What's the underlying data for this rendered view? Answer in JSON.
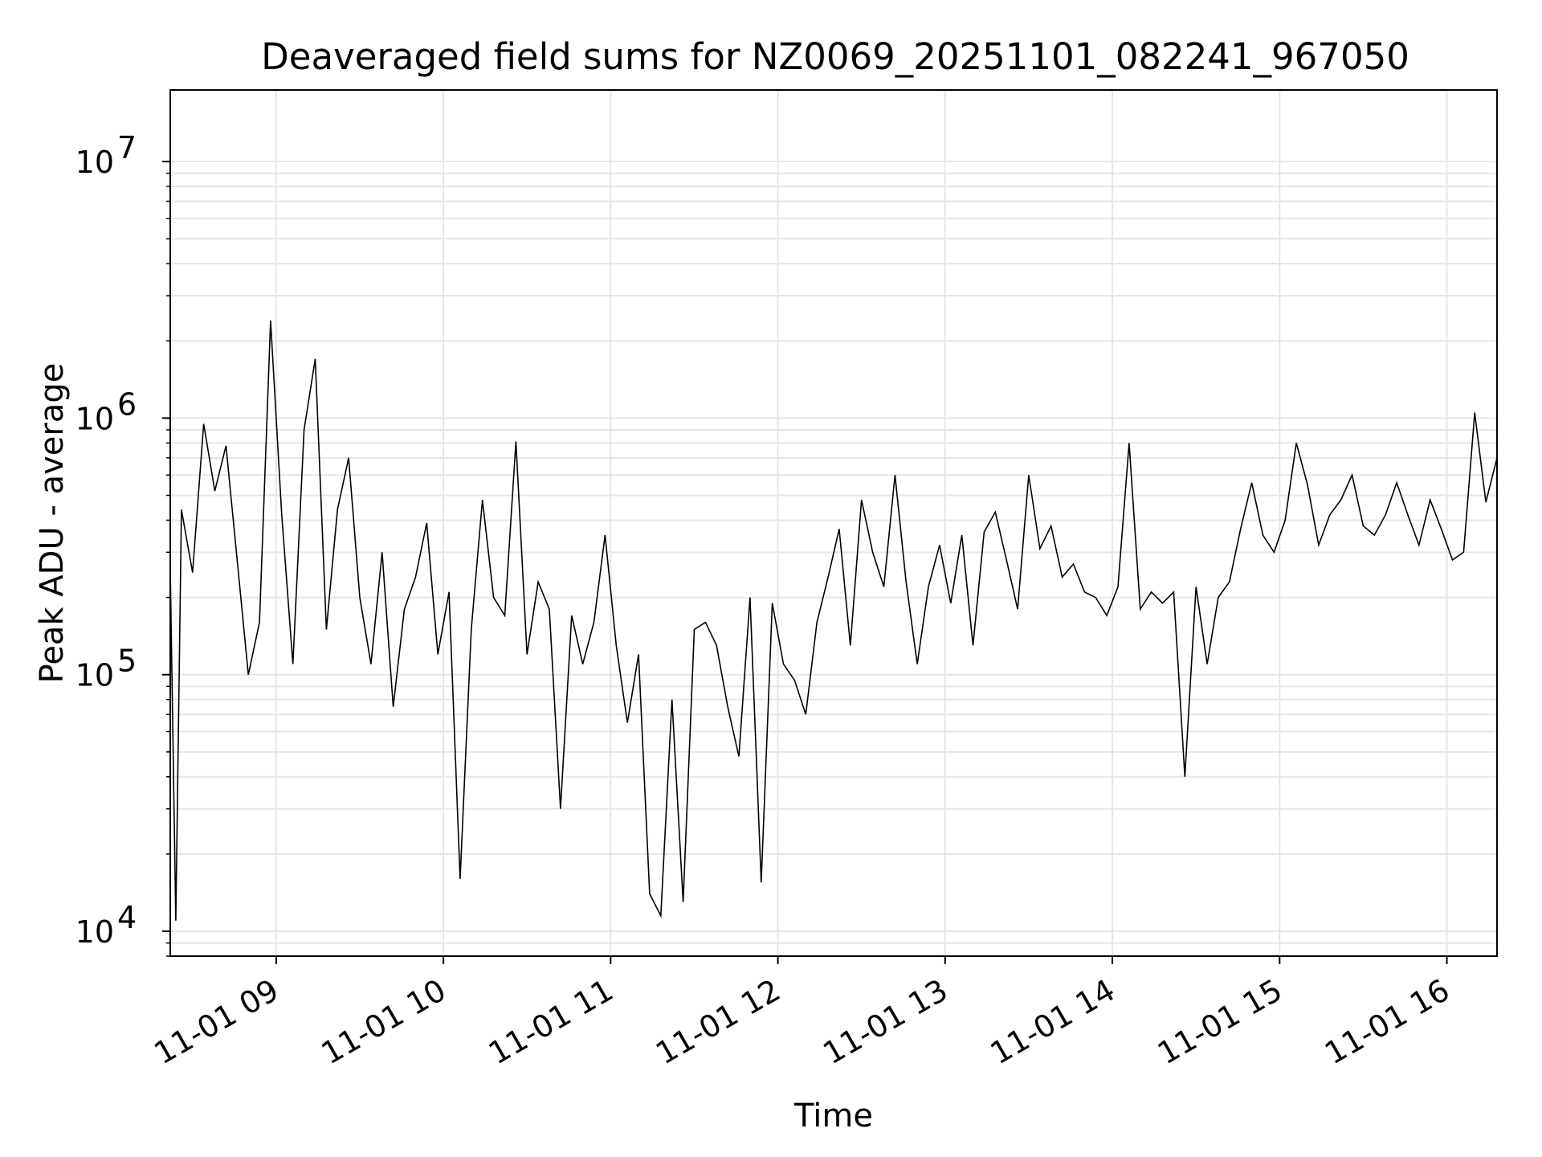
{
  "chart_data": {
    "type": "line",
    "title": "Deaveraged field sums for NZ0069_20251101_082241_967050",
    "xlabel": "Time",
    "ylabel": "Peak ADU - average",
    "yscale": "log",
    "ylim": [
      8000,
      19000000
    ],
    "xlim": [
      "2025-11-01 08:22",
      "2025-11-01 16:18"
    ],
    "grid": true,
    "line_color": "#000000",
    "grid_color": "#e6e6e6",
    "x_ticks": [
      {
        "value": "2025-11-01 09:00",
        "label": "11-01 09"
      },
      {
        "value": "2025-11-01 10:00",
        "label": "11-01 10"
      },
      {
        "value": "2025-11-01 11:00",
        "label": "11-01 11"
      },
      {
        "value": "2025-11-01 12:00",
        "label": "11-01 12"
      },
      {
        "value": "2025-11-01 13:00",
        "label": "11-01 13"
      },
      {
        "value": "2025-11-01 14:00",
        "label": "11-01 14"
      },
      {
        "value": "2025-11-01 15:00",
        "label": "11-01 15"
      },
      {
        "value": "2025-11-01 16:00",
        "label": "11-01 16"
      }
    ],
    "y_ticks": [
      {
        "value": 10000,
        "base": "10",
        "exp": "4"
      },
      {
        "value": 100000,
        "base": "10",
        "exp": "5"
      },
      {
        "value": 1000000,
        "base": "10",
        "exp": "6"
      },
      {
        "value": 10000000,
        "base": "10",
        "exp": "7"
      }
    ],
    "series": [
      {
        "x": [
          "2025-11-01 08:22",
          "2025-11-01 08:24",
          "2025-11-01 08:26",
          "2025-11-01 08:30",
          "2025-11-01 08:34",
          "2025-11-01 08:38",
          "2025-11-01 08:42",
          "2025-11-01 08:46",
          "2025-11-01 08:50",
          "2025-11-01 08:54",
          "2025-11-01 08:58",
          "2025-11-01 09:02",
          "2025-11-01 09:06",
          "2025-11-01 09:10",
          "2025-11-01 09:14",
          "2025-11-01 09:18",
          "2025-11-01 09:22",
          "2025-11-01 09:26",
          "2025-11-01 09:30",
          "2025-11-01 09:34",
          "2025-11-01 09:38",
          "2025-11-01 09:42",
          "2025-11-01 09:46",
          "2025-11-01 09:50",
          "2025-11-01 09:54",
          "2025-11-01 09:58",
          "2025-11-01 10:02",
          "2025-11-01 10:06",
          "2025-11-01 10:10",
          "2025-11-01 10:14",
          "2025-11-01 10:18",
          "2025-11-01 10:22",
          "2025-11-01 10:26",
          "2025-11-01 10:30",
          "2025-11-01 10:34",
          "2025-11-01 10:38",
          "2025-11-01 10:42",
          "2025-11-01 10:46",
          "2025-11-01 10:50",
          "2025-11-01 10:54",
          "2025-11-01 10:58",
          "2025-11-01 11:02",
          "2025-11-01 11:06",
          "2025-11-01 11:10",
          "2025-11-01 11:14",
          "2025-11-01 11:18",
          "2025-11-01 11:22",
          "2025-11-01 11:26",
          "2025-11-01 11:30",
          "2025-11-01 11:34",
          "2025-11-01 11:38",
          "2025-11-01 11:42",
          "2025-11-01 11:46",
          "2025-11-01 11:50",
          "2025-11-01 11:54",
          "2025-11-01 11:58",
          "2025-11-01 12:02",
          "2025-11-01 12:06",
          "2025-11-01 12:10",
          "2025-11-01 12:14",
          "2025-11-01 12:18",
          "2025-11-01 12:22",
          "2025-11-01 12:26",
          "2025-11-01 12:30",
          "2025-11-01 12:34",
          "2025-11-01 12:38",
          "2025-11-01 12:42",
          "2025-11-01 12:46",
          "2025-11-01 12:50",
          "2025-11-01 12:54",
          "2025-11-01 12:58",
          "2025-11-01 13:02",
          "2025-11-01 13:06",
          "2025-11-01 13:10",
          "2025-11-01 13:14",
          "2025-11-01 13:18",
          "2025-11-01 13:22",
          "2025-11-01 13:26",
          "2025-11-01 13:30",
          "2025-11-01 13:34",
          "2025-11-01 13:38",
          "2025-11-01 13:42",
          "2025-11-01 13:46",
          "2025-11-01 13:50",
          "2025-11-01 13:54",
          "2025-11-01 13:58",
          "2025-11-01 14:02",
          "2025-11-01 14:06",
          "2025-11-01 14:10",
          "2025-11-01 14:14",
          "2025-11-01 14:18",
          "2025-11-01 14:22",
          "2025-11-01 14:26",
          "2025-11-01 14:30",
          "2025-11-01 14:34",
          "2025-11-01 14:38",
          "2025-11-01 14:42",
          "2025-11-01 14:46",
          "2025-11-01 14:50",
          "2025-11-01 14:54",
          "2025-11-01 14:58",
          "2025-11-01 15:02",
          "2025-11-01 15:06",
          "2025-11-01 15:10",
          "2025-11-01 15:14",
          "2025-11-01 15:18",
          "2025-11-01 15:22",
          "2025-11-01 15:26",
          "2025-11-01 15:30",
          "2025-11-01 15:34",
          "2025-11-01 15:38",
          "2025-11-01 15:42",
          "2025-11-01 15:46",
          "2025-11-01 15:50",
          "2025-11-01 15:54",
          "2025-11-01 15:58",
          "2025-11-01 16:02",
          "2025-11-01 16:06",
          "2025-11-01 16:10",
          "2025-11-01 16:14",
          "2025-11-01 16:18"
        ],
        "y": [
          260000,
          11000,
          440000,
          250000,
          950000,
          520000,
          780000,
          280000,
          100000,
          160000,
          2400000,
          420000,
          110000,
          900000,
          1700000,
          150000,
          440000,
          700000,
          200000,
          110000,
          300000,
          75000,
          180000,
          240000,
          390000,
          120000,
          210000,
          16000,
          150000,
          480000,
          200000,
          170000,
          810000,
          120000,
          230000,
          180000,
          30000,
          170000,
          110000,
          160000,
          350000,
          130000,
          65000,
          120000,
          14000,
          11500,
          80000,
          13000,
          150000,
          160000,
          130000,
          75000,
          48000,
          200000,
          15500,
          190000,
          110000,
          95000,
          70000,
          160000,
          240000,
          370000,
          130000,
          480000,
          300000,
          220000,
          600000,
          230000,
          110000,
          220000,
          320000,
          190000,
          350000,
          130000,
          360000,
          430000,
          280000,
          180000,
          600000,
          310000,
          380000,
          240000,
          270000,
          210000,
          200000,
          170000,
          220000,
          800000,
          180000,
          210000,
          190000,
          210000,
          40000,
          220000,
          110000,
          200000,
          230000,
          370000,
          560000,
          350000,
          300000,
          400000,
          800000,
          550000,
          320000,
          420000,
          480000,
          600000,
          380000,
          350000,
          420000,
          560000,
          420000,
          320000,
          480000,
          370000,
          280000,
          300000,
          1050000,
          470000,
          700000
        ]
      }
    ]
  }
}
